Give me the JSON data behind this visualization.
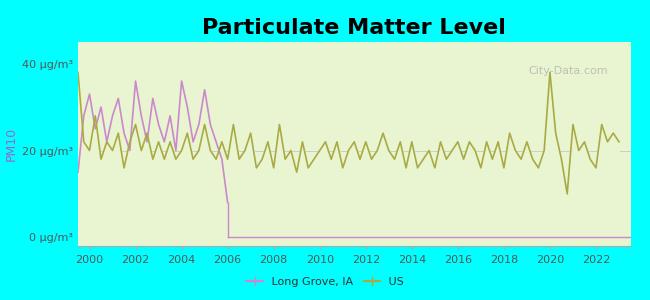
{
  "title": "Particulate Matter Level",
  "ylabel": "PM10",
  "background_color": "#00FFFF",
  "plot_bg_color": "#e8f5d0",
  "title_fontsize": 16,
  "ylabel_color": "#9966cc",
  "ytick_labels": [
    "0 μg/m³",
    "20 μg/m³",
    "40 μg/m³"
  ],
  "ytick_values": [
    0,
    20,
    40
  ],
  "ylim": [
    -2,
    45
  ],
  "xlim": [
    1999.5,
    2023.5
  ],
  "xtick_values": [
    2000,
    2002,
    2004,
    2006,
    2008,
    2010,
    2012,
    2014,
    2016,
    2018,
    2020,
    2022
  ],
  "long_grove_color": "#cc88cc",
  "us_color": "#aaaa44",
  "watermark_text": "City-Data.com",
  "long_grove_end_year": 2006,
  "long_grove_data": {
    "years": [
      1999.5,
      1999.75,
      2000.0,
      2000.25,
      2000.5,
      2000.75,
      2001.0,
      2001.25,
      2001.5,
      2001.75,
      2002.0,
      2002.25,
      2002.5,
      2002.75,
      2003.0,
      2003.25,
      2003.5,
      2003.75,
      2004.0,
      2004.25,
      2004.5,
      2004.75,
      2005.0,
      2005.25,
      2005.5,
      2005.75,
      2006.0
    ],
    "values": [
      15,
      28,
      33,
      25,
      30,
      22,
      28,
      32,
      24,
      20,
      36,
      28,
      22,
      32,
      26,
      22,
      28,
      20,
      36,
      30,
      22,
      26,
      34,
      26,
      22,
      18,
      8
    ]
  },
  "us_data": {
    "years": [
      1999.5,
      1999.75,
      2000.0,
      2000.25,
      2000.5,
      2000.75,
      2001.0,
      2001.25,
      2001.5,
      2001.75,
      2002.0,
      2002.25,
      2002.5,
      2002.75,
      2003.0,
      2003.25,
      2003.5,
      2003.75,
      2004.0,
      2004.25,
      2004.5,
      2004.75,
      2005.0,
      2005.25,
      2005.5,
      2005.75,
      2006.0,
      2006.25,
      2006.5,
      2006.75,
      2007.0,
      2007.25,
      2007.5,
      2007.75,
      2008.0,
      2008.25,
      2008.5,
      2008.75,
      2009.0,
      2009.25,
      2009.5,
      2009.75,
      2010.0,
      2010.25,
      2010.5,
      2010.75,
      2011.0,
      2011.25,
      2011.5,
      2011.75,
      2012.0,
      2012.25,
      2012.5,
      2012.75,
      2013.0,
      2013.25,
      2013.5,
      2013.75,
      2014.0,
      2014.25,
      2014.5,
      2014.75,
      2015.0,
      2015.25,
      2015.5,
      2015.75,
      2016.0,
      2016.25,
      2016.5,
      2016.75,
      2017.0,
      2017.25,
      2017.5,
      2017.75,
      2018.0,
      2018.25,
      2018.5,
      2018.75,
      2019.0,
      2019.25,
      2019.5,
      2019.75,
      2020.0,
      2020.25,
      2020.5,
      2020.75,
      2021.0,
      2021.25,
      2021.5,
      2021.75,
      2022.0,
      2022.25,
      2022.5,
      2022.75,
      2023.0
    ],
    "values": [
      38,
      22,
      20,
      28,
      18,
      22,
      20,
      24,
      16,
      22,
      26,
      20,
      24,
      18,
      22,
      18,
      22,
      18,
      20,
      24,
      18,
      20,
      26,
      20,
      18,
      22,
      18,
      26,
      18,
      20,
      24,
      16,
      18,
      22,
      16,
      26,
      18,
      20,
      15,
      22,
      16,
      18,
      20,
      22,
      18,
      22,
      16,
      20,
      22,
      18,
      22,
      18,
      20,
      24,
      20,
      18,
      22,
      16,
      22,
      16,
      18,
      20,
      16,
      22,
      18,
      20,
      22,
      18,
      22,
      20,
      16,
      22,
      18,
      22,
      16,
      24,
      20,
      18,
      22,
      18,
      16,
      20,
      38,
      24,
      18,
      10,
      26,
      20,
      22,
      18,
      16,
      26,
      22,
      24,
      22
    ]
  }
}
